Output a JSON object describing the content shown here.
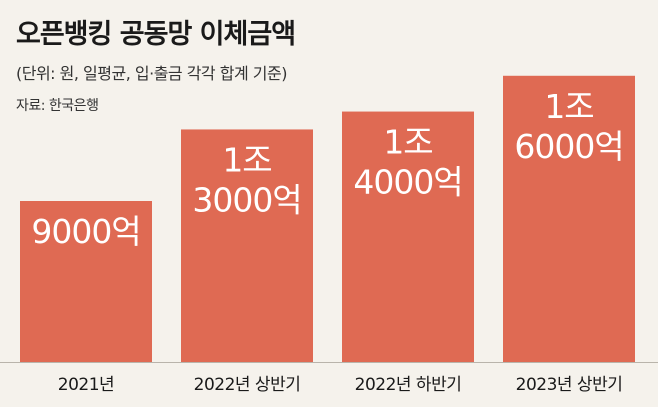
{
  "header": {
    "title": "오픈뱅킹 공동망 이체금액",
    "subtitle": "(단위: 원, 일평균, 입·출금 각각 합계 기준)",
    "source": "자료: 한국은행"
  },
  "chart_data": {
    "type": "bar",
    "title": "오픈뱅킹 공동망 이체금액",
    "subtitle": "(단위: 원, 일평균, 입·출금 각각 합계 기준)",
    "source": "자료: 한국은행",
    "categories": [
      "2021년",
      "2022년 상반기",
      "2022년 하반기",
      "2023년 상반기"
    ],
    "values": [
      900000000000,
      1300000000000,
      1400000000000,
      1600000000000
    ],
    "data_labels": [
      [
        "9000억"
      ],
      [
        "1조",
        "3000억"
      ],
      [
        "1조",
        "4000억"
      ],
      [
        "1조",
        "6000억"
      ]
    ],
    "xlabel": "",
    "ylabel": "",
    "ylim": [
      0,
      1800000000000
    ],
    "grid": false,
    "legend": "none",
    "colors": {
      "bar": "#df6a53",
      "background": "#f5f2ec",
      "label": "#ffffff"
    }
  }
}
